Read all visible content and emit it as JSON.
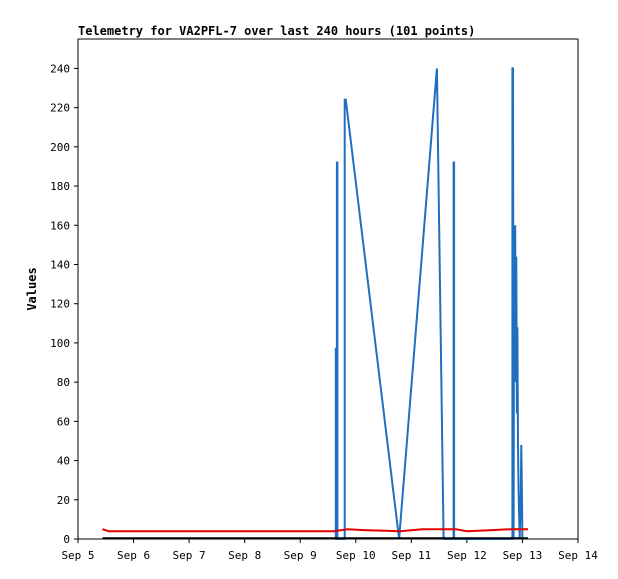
{
  "chart_data": {
    "type": "line",
    "title": "Telemetry for VA2PFL-7 over last 240 hours (101 points)",
    "xlabel": "",
    "ylabel": "Values",
    "x_ticks": [
      {
        "day": 5,
        "label": "Sep 5"
      },
      {
        "day": 6,
        "label": "Sep 6"
      },
      {
        "day": 7,
        "label": "Sep 7"
      },
      {
        "day": 8,
        "label": "Sep 8"
      },
      {
        "day": 9,
        "label": "Sep 9"
      },
      {
        "day": 10,
        "label": "Sep 10"
      },
      {
        "day": 11,
        "label": "Sep 11"
      },
      {
        "day": 12,
        "label": "Sep 12"
      },
      {
        "day": 13,
        "label": "Sep 13"
      },
      {
        "day": 14,
        "label": "Sep 14"
      }
    ],
    "xlim": [
      5,
      14
    ],
    "y_ticks": [
      0,
      20,
      40,
      60,
      80,
      100,
      120,
      140,
      160,
      180,
      200,
      220,
      240
    ],
    "ylim": [
      0,
      255
    ],
    "grid": false,
    "series": [
      {
        "color": "#1f6fc0",
        "points": [
          [
            9.64,
            0
          ],
          [
            9.64,
            97
          ],
          [
            9.65,
            97
          ],
          [
            9.65,
            0
          ],
          [
            9.66,
            0
          ],
          [
            9.66,
            192
          ],
          [
            9.67,
            192
          ],
          [
            9.67,
            0
          ],
          [
            9.8,
            0
          ],
          [
            9.8,
            224
          ],
          [
            9.82,
            224
          ],
          [
            10.78,
            0
          ],
          [
            11.46,
            240
          ],
          [
            11.58,
            0
          ],
          [
            11.76,
            0
          ],
          [
            11.76,
            192
          ],
          [
            11.77,
            192
          ],
          [
            11.77,
            0
          ],
          [
            12.82,
            0
          ],
          [
            12.82,
            240
          ],
          [
            12.83,
            240
          ],
          [
            12.84,
            0
          ],
          [
            12.85,
            160
          ],
          [
            12.86,
            96
          ],
          [
            12.87,
            160
          ],
          [
            12.88,
            80
          ],
          [
            12.89,
            144
          ],
          [
            12.9,
            64
          ],
          [
            12.91,
            108
          ],
          [
            12.92,
            48
          ],
          [
            12.93,
            24
          ],
          [
            12.95,
            0
          ],
          [
            12.97,
            24
          ],
          [
            12.98,
            48
          ],
          [
            12.99,
            24
          ],
          [
            13.0,
            0
          ],
          [
            13.02,
            0
          ]
        ]
      },
      {
        "color": "#e00000",
        "points": [
          [
            5.44,
            5
          ],
          [
            5.55,
            4
          ],
          [
            9.6,
            4
          ],
          [
            9.85,
            5
          ],
          [
            10.2,
            4.5
          ],
          [
            10.8,
            4
          ],
          [
            11.2,
            5
          ],
          [
            11.8,
            5
          ],
          [
            12.0,
            4
          ],
          [
            12.4,
            4.5
          ],
          [
            12.8,
            5
          ],
          [
            13.1,
            5
          ]
        ]
      },
      {
        "color": "#000000",
        "points": [
          [
            5.44,
            0.4
          ],
          [
            13.1,
            0.4
          ]
        ]
      }
    ]
  }
}
